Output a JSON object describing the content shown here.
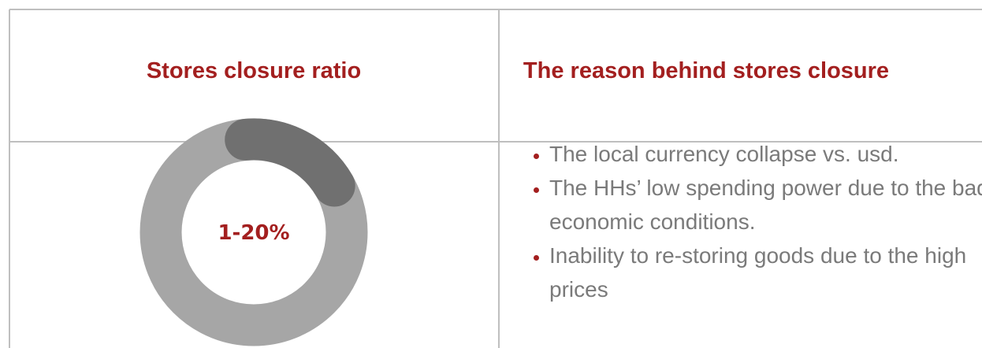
{
  "table": {
    "header": [
      "Stores closure ratio",
      "The reason behind stores closure"
    ],
    "ratio_label": "1-20%",
    "reasons": [
      "The local currency collapse vs. usd.",
      "The HHs’ low spending power due to the bad economic conditions.",
      "Inability to re-storing goods due to the high prices"
    ]
  }
}
